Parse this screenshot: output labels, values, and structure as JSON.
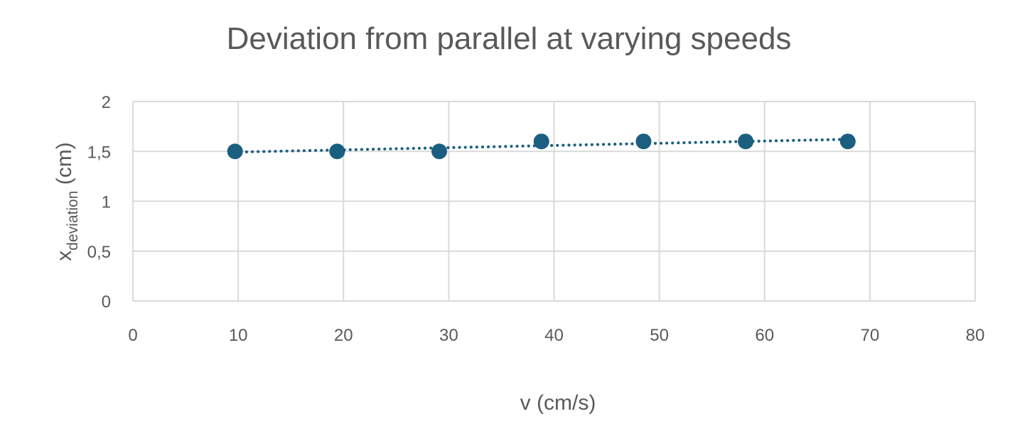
{
  "chart_data": {
    "type": "scatter",
    "title": "Deviation from parallel at varying speeds",
    "xlabel": "v (cm/s)",
    "ylabel": {
      "main": "x",
      "subscript": "deviation",
      "unit": " (cm)"
    },
    "xlim": [
      0,
      80
    ],
    "ylim": [
      0,
      2
    ],
    "x_ticks": [
      "0",
      "10",
      "20",
      "30",
      "40",
      "50",
      "60",
      "70",
      "80"
    ],
    "y_ticks": [
      "0",
      "0,5",
      "1",
      "1,5",
      "2"
    ],
    "grid": true,
    "legend": "none",
    "series": [
      {
        "x": [
          9.7,
          19.4,
          29.1,
          38.8,
          48.5,
          58.2,
          67.9
        ],
        "y": [
          1.5,
          1.5,
          1.5,
          1.6,
          1.6,
          1.6,
          1.6
        ],
        "marker_color": "#1a5e80",
        "trendline": {
          "type": "linear",
          "style": "dotted",
          "color": "#1a5e80"
        }
      }
    ],
    "colors": {
      "grid": "#d9d9d9",
      "text": "#595959"
    }
  }
}
